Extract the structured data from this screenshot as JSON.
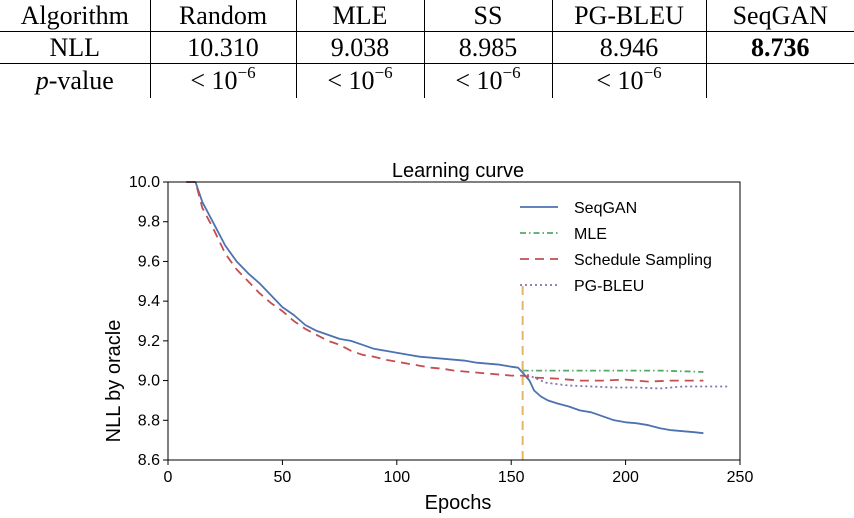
{
  "table": {
    "columns": [
      "Algorithm",
      "Random",
      "MLE",
      "SS",
      "PG-BLEU",
      "SeqGAN"
    ],
    "rows": [
      {
        "label": "NLL",
        "cells": [
          "10.310",
          "9.038",
          "8.985",
          "8.946",
          "8.736"
        ],
        "best_index": 4
      },
      {
        "label_italic": "p",
        "label_rest": "-value",
        "cells": [
          {
            "lt": "< 10",
            "exp": "−6"
          },
          {
            "lt": "< 10",
            "exp": "−6"
          },
          {
            "lt": "< 10",
            "exp": "−6"
          },
          {
            "lt": "< 10",
            "exp": "−6"
          },
          {
            "lt": "",
            "exp": ""
          }
        ]
      }
    ]
  },
  "chart_data": {
    "type": "line",
    "title": "Learning curve",
    "xlabel": "Epochs",
    "ylabel": "NLL by oracle",
    "xlim": [
      0,
      250
    ],
    "ylim": [
      8.6,
      10.0
    ],
    "xticks": [
      "0",
      "50",
      "100",
      "150",
      "200",
      "250"
    ],
    "yticks": [
      "8.6",
      "8.8",
      "9.0",
      "9.2",
      "9.4",
      "9.6",
      "9.8",
      "10.0"
    ],
    "legend_position": "top-right",
    "grid": false,
    "series": [
      {
        "name": "SeqGAN",
        "color": "#4c72b0",
        "style": "solid",
        "points": [
          [
            8,
            10.0
          ],
          [
            12,
            10.0
          ],
          [
            15,
            9.9
          ],
          [
            20,
            9.79
          ],
          [
            25,
            9.68
          ],
          [
            30,
            9.6
          ],
          [
            35,
            9.54
          ],
          [
            40,
            9.49
          ],
          [
            45,
            9.43
          ],
          [
            50,
            9.37
          ],
          [
            55,
            9.33
          ],
          [
            60,
            9.28
          ],
          [
            65,
            9.25
          ],
          [
            70,
            9.23
          ],
          [
            75,
            9.21
          ],
          [
            80,
            9.2
          ],
          [
            85,
            9.18
          ],
          [
            90,
            9.16
          ],
          [
            95,
            9.15
          ],
          [
            100,
            9.14
          ],
          [
            105,
            9.13
          ],
          [
            110,
            9.12
          ],
          [
            115,
            9.115
          ],
          [
            120,
            9.11
          ],
          [
            125,
            9.105
          ],
          [
            130,
            9.1
          ],
          [
            135,
            9.09
          ],
          [
            140,
            9.085
          ],
          [
            145,
            9.08
          ],
          [
            150,
            9.07
          ],
          [
            153,
            9.065
          ],
          [
            155,
            9.04
          ],
          [
            158,
            9.0
          ],
          [
            160,
            8.95
          ],
          [
            163,
            8.92
          ],
          [
            166,
            8.9
          ],
          [
            170,
            8.885
          ],
          [
            175,
            8.87
          ],
          [
            180,
            8.85
          ],
          [
            185,
            8.84
          ],
          [
            190,
            8.82
          ],
          [
            195,
            8.8
          ],
          [
            200,
            8.79
          ],
          [
            205,
            8.785
          ],
          [
            210,
            8.775
          ],
          [
            215,
            8.76
          ],
          [
            220,
            8.75
          ],
          [
            225,
            8.745
          ],
          [
            230,
            8.74
          ],
          [
            234,
            8.735
          ]
        ]
      },
      {
        "name": "MLE",
        "color": "#55a868",
        "style": "dashdot",
        "points": [
          [
            155,
            9.05
          ],
          [
            170,
            9.05
          ],
          [
            185,
            9.05
          ],
          [
            200,
            9.05
          ],
          [
            215,
            9.05
          ],
          [
            230,
            9.045
          ],
          [
            234,
            9.043
          ]
        ]
      },
      {
        "name": "Schedule Sampling",
        "color": "#c44e52",
        "style": "dashed",
        "points": [
          [
            8,
            10.0
          ],
          [
            12,
            10.0
          ],
          [
            15,
            9.87
          ],
          [
            20,
            9.76
          ],
          [
            25,
            9.64
          ],
          [
            30,
            9.56
          ],
          [
            35,
            9.5
          ],
          [
            40,
            9.44
          ],
          [
            45,
            9.39
          ],
          [
            50,
            9.35
          ],
          [
            55,
            9.3
          ],
          [
            60,
            9.26
          ],
          [
            65,
            9.23
          ],
          [
            70,
            9.2
          ],
          [
            75,
            9.18
          ],
          [
            80,
            9.15
          ],
          [
            85,
            9.13
          ],
          [
            90,
            9.12
          ],
          [
            95,
            9.105
          ],
          [
            100,
            9.095
          ],
          [
            105,
            9.085
          ],
          [
            110,
            9.075
          ],
          [
            115,
            9.065
          ],
          [
            120,
            9.06
          ],
          [
            125,
            9.05
          ],
          [
            130,
            9.045
          ],
          [
            135,
            9.04
          ],
          [
            140,
            9.035
          ],
          [
            145,
            9.03
          ],
          [
            150,
            9.025
          ],
          [
            153,
            9.025
          ],
          [
            155,
            9.025
          ],
          [
            160,
            9.015
          ],
          [
            170,
            9.01
          ],
          [
            180,
            9.0
          ],
          [
            190,
            9.0
          ],
          [
            200,
            9.005
          ],
          [
            210,
            8.995
          ],
          [
            220,
            9.0
          ],
          [
            230,
            9.0
          ],
          [
            234,
            9.0
          ]
        ]
      },
      {
        "name": "PG-BLEU",
        "color": "#8172b2",
        "style": "dotted",
        "points": [
          [
            155,
            9.04
          ],
          [
            165,
            8.99
          ],
          [
            175,
            8.975
          ],
          [
            185,
            8.97
          ],
          [
            195,
            8.965
          ],
          [
            205,
            8.965
          ],
          [
            215,
            8.96
          ],
          [
            225,
            8.97
          ],
          [
            235,
            8.97
          ],
          [
            245,
            8.97
          ]
        ]
      }
    ],
    "annotations": [
      {
        "type": "vline",
        "x": 155,
        "y_top": 9.48,
        "color": "#e8b468",
        "style": "dashed"
      }
    ]
  }
}
